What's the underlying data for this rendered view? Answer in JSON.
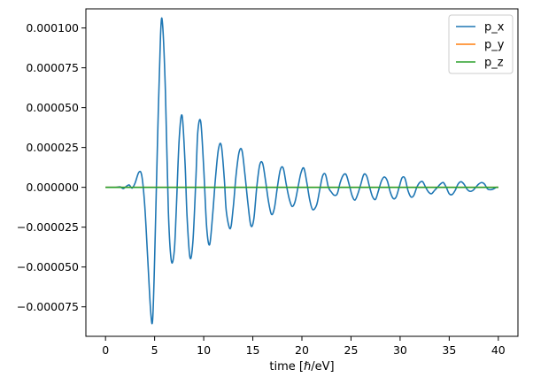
{
  "chart_data": {
    "type": "line",
    "xlabel": "time [ℏ/eV]",
    "ylabel": "",
    "title": "",
    "xlim": [
      -2.0,
      42.0
    ],
    "ylim": [
      -9.35e-05,
      0.000112
    ],
    "xticks": [
      0,
      5,
      10,
      15,
      20,
      25,
      30,
      35,
      40
    ],
    "xtick_labels": [
      "0",
      "5",
      "10",
      "15",
      "20",
      "25",
      "30",
      "35",
      "40"
    ],
    "yticks": [
      -7.5e-05,
      -5e-05,
      -2.5e-05,
      0.0,
      2.5e-05,
      5e-05,
      7.5e-05,
      0.0001
    ],
    "ytick_labels": [
      "−0.000075",
      "−0.000050",
      "−0.000025",
      "0.000000",
      "0.000025",
      "0.000050",
      "0.000075",
      "0.000100"
    ],
    "grid": false,
    "legend_position": "top-right",
    "series": [
      {
        "name": "p_x",
        "color": "#1f77b4",
        "x": [
          0,
          1.0,
          1.5,
          1.8,
          2.1,
          2.4,
          2.7,
          3.0,
          3.4,
          3.7,
          4.0,
          4.3,
          4.6,
          4.8,
          5.0,
          5.3,
          5.6,
          5.8,
          6.1,
          6.4,
          6.7,
          7.0,
          7.2,
          7.5,
          7.8,
          8.1,
          8.3,
          8.6,
          8.9,
          9.2,
          9.4,
          9.7,
          10.0,
          10.3,
          10.6,
          10.9,
          11.2,
          11.5,
          11.8,
          12.1,
          12.3,
          12.7,
          13.0,
          13.3,
          13.6,
          13.9,
          14.2,
          14.5,
          14.8,
          15.1,
          15.4,
          15.7,
          16.0,
          16.3,
          16.6,
          16.9,
          17.2,
          17.5,
          17.8,
          18.1,
          18.4,
          18.7,
          19.0,
          19.3,
          19.6,
          19.9,
          20.2,
          20.5,
          20.8,
          21.1,
          21.5,
          21.8,
          22.1,
          22.4,
          22.7,
          23.0,
          23.3,
          23.6,
          23.9,
          24.2,
          24.5,
          24.8,
          25.1,
          25.4,
          25.7,
          26.0,
          26.3,
          26.6,
          26.9,
          27.2,
          27.5,
          27.8,
          28.1,
          28.4,
          28.7,
          29.0,
          29.3,
          29.6,
          29.9,
          30.2,
          30.5,
          30.8,
          31.1,
          31.4,
          31.7,
          32.0,
          32.3,
          32.6,
          32.9,
          33.2,
          33.5,
          33.8,
          34.1,
          34.4,
          34.7,
          35.0,
          35.3,
          35.6,
          35.9,
          36.2,
          36.5,
          36.8,
          37.1,
          37.4,
          37.7,
          38.0,
          38.3,
          38.6,
          38.9,
          39.2,
          39.5,
          39.8,
          40.0
        ],
        "values": [
          0.0,
          0.0,
          3e-07,
          -8e-07,
          5e-07,
          1.5e-06,
          -5e-07,
          2.5e-06,
          9.5e-06,
          7e-06,
          -1.2e-05,
          -4.5e-05,
          -7.8e-05,
          -8.3e-05,
          -4.5e-05,
          3e-05,
          9.5e-05,
          0.000103,
          6e-05,
          -1.5e-05,
          -4.6e-05,
          -4e-05,
          -1.5e-05,
          3e-05,
          4.5e-05,
          1.5e-05,
          -1.8e-05,
          -4.4e-05,
          -3.4e-05,
          5e-06,
          3.5e-05,
          4.1e-05,
          1.2e-05,
          -2.5e-05,
          -3.6e-05,
          -1.8e-05,
          6e-06,
          2.4e-05,
          2.6e-05,
          5e-06,
          -1.5e-05,
          -2.6e-05,
          -1.3e-05,
          8e-06,
          2.2e-05,
          2.3e-05,
          8e-06,
          -1e-05,
          -2.4e-05,
          -2e-05,
          0.0,
          1.4e-05,
          1.5e-05,
          4e-06,
          -9e-06,
          -1.7e-05,
          -1.3e-05,
          0.0,
          1.1e-05,
          1.2e-05,
          2e-06,
          -7e-06,
          -1.2e-05,
          -9e-06,
          0.0,
          9e-06,
          1.2e-05,
          3e-06,
          -8e-06,
          -1.4e-05,
          -1.1e-05,
          -2e-06,
          7e-06,
          8e-06,
          0.0,
          -3e-06,
          -5e-06,
          -4e-06,
          3e-06,
          7.5e-06,
          8e-06,
          2e-06,
          -5e-06,
          -8e-06,
          -4e-06,
          2e-06,
          8e-06,
          7e-06,
          0.0,
          -6e-06,
          -7.5e-06,
          -2e-06,
          4e-06,
          6.5e-06,
          4e-06,
          -3e-06,
          -7e-06,
          -6e-06,
          0.0,
          6e-06,
          5.5e-06,
          -2e-06,
          -6e-06,
          -5e-06,
          0.0,
          3e-06,
          3.5e-06,
          0.0,
          -3e-06,
          -4e-06,
          -2e-06,
          0.0,
          2e-06,
          3e-06,
          0.0,
          -4e-06,
          -4.5e-06,
          -2e-06,
          2e-06,
          3.5e-06,
          2e-06,
          -1e-06,
          -2.5e-06,
          -2e-06,
          0.0,
          2e-06,
          3e-06,
          2e-06,
          -1e-06,
          -1.5e-06,
          -1e-06,
          0.0,
          0.0
        ]
      },
      {
        "name": "p_y",
        "color": "#ff7f0e",
        "x": [
          0,
          40
        ],
        "values": [
          0.0,
          0.0
        ]
      },
      {
        "name": "p_z",
        "color": "#2ca02c",
        "x": [
          0,
          40
        ],
        "values": [
          0.0,
          0.0
        ]
      }
    ]
  }
}
